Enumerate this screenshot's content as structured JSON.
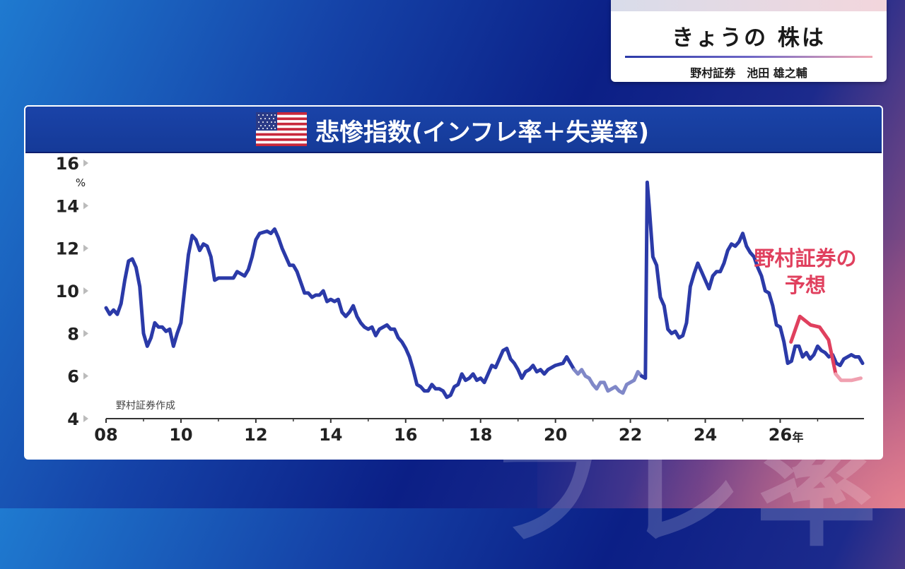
{
  "header": {
    "title": "きょうの 株は",
    "subtitle": "野村証券　池田 雄之輔"
  },
  "background_text": "フレ率",
  "chart_data": {
    "type": "line",
    "title": "悲惨指数(インフレ率＋失業率)",
    "flag_icon": "us-flag-icon",
    "ylabel": "%",
    "ylim": [
      4,
      16
    ],
    "yticks": [
      "16",
      "14",
      "12",
      "10",
      "8",
      "6",
      "4"
    ],
    "xlim": [
      2008,
      2028.2
    ],
    "xticks": [
      "08",
      "10",
      "12",
      "14",
      "16",
      "18",
      "20",
      "22",
      "24",
      "26"
    ],
    "x_unit": "年",
    "source": "野村証券作成",
    "forecast_label": [
      "野村証券の",
      "予想"
    ],
    "colors": {
      "actual": "#2b3aa8",
      "faded": "#8088c8",
      "forecast": "#e0405e",
      "forecast_faded": "#f0a0b0"
    },
    "series": [
      {
        "segment": "actual",
        "points": [
          [
            2008.0,
            9.2
          ],
          [
            2008.1,
            8.9
          ],
          [
            2008.2,
            9.1
          ],
          [
            2008.3,
            8.9
          ],
          [
            2008.4,
            9.4
          ],
          [
            2008.5,
            10.5
          ],
          [
            2008.6,
            11.4
          ],
          [
            2008.7,
            11.5
          ],
          [
            2008.8,
            11.1
          ],
          [
            2008.9,
            10.2
          ],
          [
            2009.0,
            8.0
          ],
          [
            2009.1,
            7.4
          ],
          [
            2009.2,
            7.8
          ],
          [
            2009.3,
            8.5
          ],
          [
            2009.4,
            8.3
          ],
          [
            2009.5,
            8.3
          ],
          [
            2009.6,
            8.1
          ],
          [
            2009.7,
            8.2
          ],
          [
            2009.8,
            7.4
          ],
          [
            2009.9,
            8.0
          ],
          [
            2010.0,
            8.5
          ],
          [
            2010.2,
            11.7
          ],
          [
            2010.3,
            12.6
          ],
          [
            2010.4,
            12.4
          ],
          [
            2010.5,
            11.9
          ],
          [
            2010.6,
            12.2
          ],
          [
            2010.7,
            12.1
          ],
          [
            2010.8,
            11.6
          ],
          [
            2010.9,
            10.5
          ],
          [
            2011.0,
            10.6
          ],
          [
            2011.2,
            10.6
          ],
          [
            2011.4,
            10.6
          ],
          [
            2011.5,
            10.9
          ],
          [
            2011.6,
            10.8
          ],
          [
            2011.7,
            10.7
          ],
          [
            2011.8,
            11.0
          ],
          [
            2011.9,
            11.6
          ],
          [
            2012.0,
            12.4
          ],
          [
            2012.1,
            12.7
          ],
          [
            2012.3,
            12.8
          ],
          [
            2012.4,
            12.7
          ],
          [
            2012.5,
            12.9
          ],
          [
            2012.6,
            12.5
          ],
          [
            2012.7,
            12.0
          ],
          [
            2012.8,
            11.6
          ],
          [
            2012.9,
            11.2
          ],
          [
            2013.0,
            11.2
          ],
          [
            2013.1,
            10.9
          ],
          [
            2013.2,
            10.4
          ],
          [
            2013.3,
            9.9
          ],
          [
            2013.4,
            9.9
          ],
          [
            2013.5,
            9.7
          ],
          [
            2013.6,
            9.8
          ],
          [
            2013.7,
            9.8
          ],
          [
            2013.8,
            10.0
          ],
          [
            2013.9,
            9.5
          ],
          [
            2014.0,
            9.6
          ],
          [
            2014.1,
            9.5
          ],
          [
            2014.2,
            9.6
          ],
          [
            2014.3,
            9.0
          ],
          [
            2014.4,
            8.8
          ],
          [
            2014.5,
            9.0
          ],
          [
            2014.6,
            9.3
          ],
          [
            2014.7,
            8.8
          ],
          [
            2014.8,
            8.5
          ],
          [
            2014.9,
            8.3
          ],
          [
            2015.0,
            8.2
          ],
          [
            2015.1,
            8.3
          ],
          [
            2015.2,
            7.9
          ],
          [
            2015.3,
            8.2
          ],
          [
            2015.4,
            8.3
          ],
          [
            2015.5,
            8.4
          ],
          [
            2015.6,
            8.2
          ],
          [
            2015.7,
            8.2
          ],
          [
            2015.8,
            7.8
          ],
          [
            2015.9,
            7.6
          ],
          [
            2016.0,
            7.3
          ],
          [
            2016.1,
            6.9
          ],
          [
            2016.2,
            6.3
          ],
          [
            2016.3,
            5.6
          ],
          [
            2016.4,
            5.5
          ],
          [
            2016.5,
            5.3
          ],
          [
            2016.6,
            5.3
          ],
          [
            2016.7,
            5.6
          ],
          [
            2016.8,
            5.4
          ],
          [
            2016.9,
            5.4
          ],
          [
            2017.0,
            5.3
          ],
          [
            2017.1,
            5.0
          ],
          [
            2017.2,
            5.1
          ],
          [
            2017.3,
            5.5
          ],
          [
            2017.4,
            5.6
          ],
          [
            2017.5,
            6.1
          ],
          [
            2017.6,
            5.8
          ],
          [
            2017.7,
            5.9
          ],
          [
            2017.8,
            6.1
          ],
          [
            2017.9,
            5.8
          ],
          [
            2018.0,
            5.9
          ],
          [
            2018.1,
            5.7
          ],
          [
            2018.2,
            6.1
          ],
          [
            2018.3,
            6.5
          ],
          [
            2018.4,
            6.4
          ],
          [
            2018.5,
            6.8
          ],
          [
            2018.6,
            7.2
          ],
          [
            2018.7,
            7.3
          ],
          [
            2018.8,
            6.8
          ],
          [
            2018.9,
            6.6
          ],
          [
            2019.0,
            6.3
          ],
          [
            2019.1,
            5.9
          ],
          [
            2019.2,
            6.2
          ],
          [
            2019.3,
            6.3
          ],
          [
            2019.4,
            6.5
          ],
          [
            2019.5,
            6.2
          ],
          [
            2019.6,
            6.3
          ],
          [
            2019.7,
            6.1
          ],
          [
            2019.8,
            6.3
          ],
          [
            2019.9,
            6.4
          ],
          [
            2020.0,
            6.5
          ],
          [
            2020.2,
            6.6
          ],
          [
            2020.3,
            6.9
          ],
          [
            2020.4,
            6.6
          ],
          [
            2020.5,
            6.3
          ]
        ]
      },
      {
        "segment": "faded",
        "points": [
          [
            2020.5,
            6.3
          ],
          [
            2020.6,
            6.1
          ],
          [
            2020.7,
            6.3
          ],
          [
            2020.8,
            6.0
          ],
          [
            2020.9,
            5.9
          ],
          [
            2021.0,
            5.6
          ],
          [
            2021.1,
            5.4
          ],
          [
            2021.2,
            5.7
          ],
          [
            2021.3,
            5.7
          ],
          [
            2021.4,
            5.3
          ],
          [
            2021.5,
            5.4
          ],
          [
            2021.6,
            5.5
          ],
          [
            2021.7,
            5.3
          ],
          [
            2021.8,
            5.2
          ],
          [
            2021.9,
            5.6
          ],
          [
            2022.0,
            5.7
          ],
          [
            2022.1,
            5.8
          ],
          [
            2022.2,
            6.2
          ],
          [
            2022.3,
            6.0
          ]
        ]
      },
      {
        "segment": "actual",
        "points": [
          [
            2022.3,
            6.0
          ],
          [
            2022.4,
            5.9
          ],
          [
            2022.45,
            15.1
          ],
          [
            2022.5,
            14.0
          ],
          [
            2022.6,
            11.6
          ],
          [
            2022.7,
            11.2
          ],
          [
            2022.8,
            9.7
          ],
          [
            2022.9,
            9.3
          ],
          [
            2023.0,
            8.2
          ],
          [
            2023.1,
            8.0
          ],
          [
            2023.2,
            8.1
          ],
          [
            2023.3,
            7.8
          ],
          [
            2023.4,
            7.9
          ],
          [
            2023.5,
            8.5
          ],
          [
            2023.6,
            10.2
          ],
          [
            2023.7,
            10.8
          ],
          [
            2023.8,
            11.3
          ],
          [
            2023.9,
            10.9
          ],
          [
            2024.0,
            10.5
          ],
          [
            2024.1,
            10.1
          ],
          [
            2024.2,
            10.7
          ],
          [
            2024.3,
            10.9
          ],
          [
            2024.4,
            10.9
          ],
          [
            2024.5,
            11.3
          ],
          [
            2024.6,
            11.9
          ],
          [
            2024.7,
            12.2
          ],
          [
            2024.8,
            12.1
          ],
          [
            2024.9,
            12.3
          ],
          [
            2025.0,
            12.7
          ],
          [
            2025.1,
            12.1
          ],
          [
            2025.2,
            11.8
          ],
          [
            2025.3,
            11.6
          ],
          [
            2025.4,
            11.1
          ],
          [
            2025.5,
            10.7
          ],
          [
            2025.6,
            10.0
          ],
          [
            2025.7,
            9.9
          ],
          [
            2025.8,
            9.3
          ],
          [
            2025.9,
            8.4
          ],
          [
            2026.0,
            8.3
          ],
          [
            2026.1,
            7.6
          ],
          [
            2026.2,
            6.6
          ],
          [
            2026.3,
            6.7
          ],
          [
            2026.4,
            7.4
          ],
          [
            2026.5,
            7.4
          ],
          [
            2026.6,
            6.9
          ],
          [
            2026.7,
            7.1
          ],
          [
            2026.8,
            6.8
          ],
          [
            2026.9,
            7.0
          ],
          [
            2027.0,
            7.4
          ],
          [
            2027.1,
            7.2
          ],
          [
            2027.2,
            7.1
          ],
          [
            2027.3,
            6.9
          ],
          [
            2027.4,
            7.0
          ],
          [
            2027.5,
            6.6
          ],
          [
            2027.6,
            6.5
          ],
          [
            2027.7,
            6.8
          ],
          [
            2027.8,
            6.9
          ],
          [
            2027.9,
            7.0
          ],
          [
            2028.0,
            6.9
          ],
          [
            2028.1,
            6.9
          ],
          [
            2028.2,
            6.6
          ]
        ]
      }
    ]
  }
}
